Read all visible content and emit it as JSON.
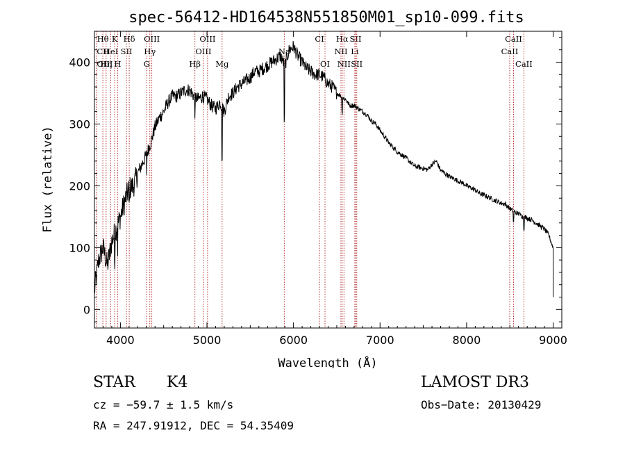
{
  "chart_data": {
    "type": "line",
    "title": "spec-56412-HD164538N551850M01_sp10-099.fits",
    "xlabel": "Wavelength (Å)",
    "ylabel": "Flux (relative)",
    "xlim": [
      3700,
      9100
    ],
    "ylim": [
      -30,
      450
    ],
    "xticks": [
      4000,
      5000,
      6000,
      7000,
      8000,
      9000
    ],
    "yticks": [
      0,
      100,
      200,
      300,
      400
    ],
    "grid": false,
    "series": [
      {
        "name": "spectrum",
        "x": [
          3700,
          3750,
          3800,
          3850,
          3900,
          3950,
          4000,
          4050,
          4100,
          4150,
          4200,
          4250,
          4300,
          4350,
          4400,
          4450,
          4500,
          4550,
          4600,
          4650,
          4700,
          4750,
          4800,
          4850,
          4900,
          4950,
          5000,
          5050,
          5100,
          5150,
          5200,
          5250,
          5300,
          5350,
          5400,
          5450,
          5500,
          5550,
          5600,
          5650,
          5700,
          5750,
          5800,
          5850,
          5900,
          5950,
          6000,
          6050,
          6100,
          6150,
          6200,
          6250,
          6300,
          6350,
          6400,
          6450,
          6500,
          6550,
          6600,
          6650,
          6700,
          6750,
          6800,
          6850,
          6900,
          6950,
          7000,
          7050,
          7100,
          7150,
          7200,
          7250,
          7300,
          7350,
          7400,
          7450,
          7500,
          7550,
          7600,
          7650,
          7700,
          7750,
          7800,
          7850,
          7900,
          7950,
          8000,
          8050,
          8100,
          8150,
          8200,
          8250,
          8300,
          8350,
          8400,
          8450,
          8500,
          8550,
          8600,
          8650,
          8700,
          8750,
          8800,
          8850,
          8900,
          8950,
          9000
        ],
        "values": [
          30,
          80,
          100,
          70,
          110,
          130,
          150,
          175,
          195,
          200,
          220,
          235,
          250,
          270,
          295,
          310,
          320,
          335,
          345,
          345,
          350,
          355,
          355,
          345,
          340,
          345,
          340,
          330,
          325,
          335,
          320,
          345,
          350,
          360,
          365,
          370,
          375,
          385,
          385,
          390,
          395,
          400,
          405,
          410,
          395,
          420,
          425,
          410,
          400,
          390,
          385,
          380,
          380,
          375,
          365,
          360,
          350,
          345,
          340,
          330,
          330,
          325,
          320,
          315,
          305,
          300,
          290,
          280,
          270,
          262,
          255,
          250,
          245,
          238,
          232,
          230,
          228,
          226,
          235,
          240,
          225,
          220,
          215,
          212,
          208,
          205,
          200,
          197,
          193,
          188,
          185,
          182,
          178,
          175,
          172,
          170,
          163,
          158,
          155,
          150,
          148,
          145,
          140,
          135,
          130,
          120,
          100
        ]
      }
    ],
    "spectral_lines": [
      {
        "label": "Hθ",
        "x": 3797,
        "row": 0,
        "anchor": "middle"
      },
      {
        "label": "K",
        "x": 3934,
        "row": 0,
        "anchor": "middle"
      },
      {
        "label": "Hδ",
        "x": 4102,
        "row": 0,
        "anchor": "middle"
      },
      {
        "label": "OIII",
        "x": 4363,
        "row": 0,
        "anchor": "middle"
      },
      {
        "label": "OIII",
        "x": 5007,
        "row": 0,
        "anchor": "middle"
      },
      {
        "label": "CI",
        "x": 6300,
        "row": 0,
        "anchor": "middle"
      },
      {
        "label": "Hα",
        "x": 6563,
        "row": 0,
        "anchor": "middle"
      },
      {
        "label": "SII",
        "x": 6717,
        "row": 0,
        "anchor": "middle"
      },
      {
        "label": "CaII",
        "x": 8542,
        "row": 0,
        "anchor": "middle"
      },
      {
        "label": "CII",
        "x": 3727,
        "row": 1,
        "anchor": "start"
      },
      {
        "label": "HeI",
        "x": 3889,
        "row": 1,
        "anchor": "middle"
      },
      {
        "label": "SII",
        "x": 4070,
        "row": 1,
        "anchor": "middle"
      },
      {
        "label": "Hγ",
        "x": 4340,
        "row": 1,
        "anchor": "middle"
      },
      {
        "label": "OIII",
        "x": 4959,
        "row": 1,
        "anchor": "middle"
      },
      {
        "label": "Na",
        "x": 5893,
        "row": 1,
        "anchor": "middle"
      },
      {
        "label": "NII",
        "x": 6548,
        "row": 1,
        "anchor": "middle"
      },
      {
        "label": "Li",
        "x": 6708,
        "row": 1,
        "anchor": "middle"
      },
      {
        "label": "CaII",
        "x": 8498,
        "row": 1,
        "anchor": "middle"
      },
      {
        "label": "OIII",
        "x": 3727,
        "row": 2,
        "anchor": "start"
      },
      {
        "label": "Hη",
        "x": 3835,
        "row": 2,
        "anchor": "middle"
      },
      {
        "label": "H",
        "x": 3968,
        "row": 2,
        "anchor": "middle"
      },
      {
        "label": "G",
        "x": 4304,
        "row": 2,
        "anchor": "middle"
      },
      {
        "label": "Hβ",
        "x": 4861,
        "row": 2,
        "anchor": "middle"
      },
      {
        "label": "Mg",
        "x": 5175,
        "row": 2,
        "anchor": "middle"
      },
      {
        "label": "OI",
        "x": 6364,
        "row": 2,
        "anchor": "middle"
      },
      {
        "label": "NII",
        "x": 6583,
        "row": 2,
        "anchor": "middle"
      },
      {
        "label": "SII",
        "x": 6731,
        "row": 2,
        "anchor": "middle"
      },
      {
        "label": "CaII",
        "x": 8662,
        "row": 2,
        "anchor": "middle"
      }
    ]
  },
  "info": {
    "object_class": "STAR",
    "subclass": "K4",
    "survey": "LAMOST DR3",
    "redshift_text": "cz = −59.7 ± 1.5 km/s",
    "obs_date_text": "Obs−Date: 20130429",
    "coords_text": "RA = 247.91912, DEC =  54.35409"
  }
}
